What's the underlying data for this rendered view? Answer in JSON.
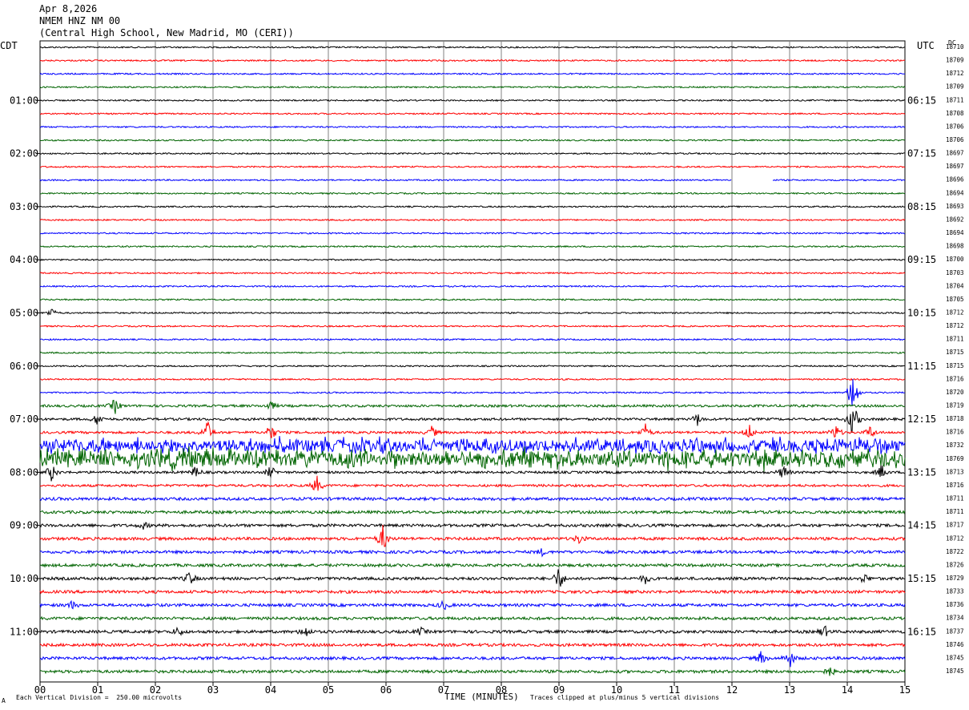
{
  "header": {
    "date": "Apr 8,2026",
    "station": "NMEM HNZ NM 00",
    "location": "(Central High School, New Madrid, MO (CERI))"
  },
  "left_tz": "CDT",
  "right_tz": "UTC",
  "dc_label": "DC",
  "footer": {
    "vertical_division": "Each Vertical Division =  250.00 microvolts",
    "clip_note": "Traces clipped at plus/minus 5 vertical divisions",
    "mark": "A"
  },
  "colors": {
    "cycle": [
      "#000000",
      "#ff0000",
      "#0000ff",
      "#006400"
    ],
    "grid": "#808080"
  },
  "chart_data": {
    "type": "line",
    "title": "NMEM HNZ NM 00",
    "xlabel": "TIME (MINUTES)",
    "ylabel": "",
    "x_ticks": [
      "00",
      "01",
      "02",
      "03",
      "04",
      "05",
      "06",
      "07",
      "08",
      "09",
      "10",
      "11",
      "12",
      "13",
      "14",
      "15"
    ],
    "xlim": [
      0,
      15
    ],
    "left_time_labels": [
      "01:00",
      "02:00",
      "03:00",
      "04:00",
      "05:00",
      "06:00",
      "07:00",
      "08:00",
      "09:00",
      "10:00",
      "11:00"
    ],
    "right_time_labels": [
      "06:15",
      "07:15",
      "08:15",
      "09:15",
      "10:15",
      "11:15",
      "12:15",
      "13:15",
      "14:15",
      "15:15",
      "16:15"
    ],
    "dc_offsets": [
      18710,
      18709,
      18712,
      18709,
      18711,
      18708,
      18706,
      18706,
      18697,
      18697,
      18696,
      18694,
      18693,
      18692,
      18694,
      18698,
      18700,
      18703,
      18704,
      18705,
      18712,
      18712,
      18711,
      18715,
      18715,
      18716,
      18720,
      18719,
      18718,
      18716,
      18732,
      18769,
      18713,
      18716,
      18711,
      18711,
      18717,
      18712,
      18722,
      18726,
      18729,
      18733,
      18736,
      18734,
      18737,
      18746,
      18745,
      18745
    ],
    "trace_activity": [
      {
        "trace": 10,
        "gap": [
          12.0,
          12.7
        ]
      },
      {
        "trace": 20,
        "events": [
          [
            0.2,
            1.5
          ]
        ]
      },
      {
        "trace": 26,
        "events": [
          [
            14.1,
            8
          ]
        ]
      },
      {
        "trace": 27,
        "events": [
          [
            1.3,
            2.5
          ],
          [
            4.0,
            1.5
          ]
        ]
      },
      {
        "trace": 28,
        "events": [
          [
            1.0,
            2
          ],
          [
            11.4,
            2
          ],
          [
            14.1,
            6
          ]
        ]
      },
      {
        "trace": 29,
        "events": [
          [
            2.9,
            4
          ],
          [
            4.0,
            3
          ],
          [
            6.8,
            2
          ],
          [
            10.5,
            2.5
          ],
          [
            12.3,
            2.5
          ],
          [
            13.8,
            2.5
          ],
          [
            14.4,
            2
          ]
        ]
      },
      {
        "trace": 30,
        "noise": 3
      },
      {
        "trace": 31,
        "noise": 4
      },
      {
        "trace": 32,
        "events": [
          [
            0.2,
            3
          ],
          [
            2.7,
            2
          ],
          [
            4.0,
            2
          ],
          [
            12.9,
            2.5
          ],
          [
            14.6,
            2.5
          ]
        ]
      },
      {
        "trace": 33,
        "events": [
          [
            4.8,
            3
          ]
        ]
      },
      {
        "trace": 36,
        "events": [
          [
            1.8,
            1
          ]
        ]
      },
      {
        "trace": 37,
        "events": [
          [
            5.95,
            4.5
          ],
          [
            9.35,
            1.5
          ]
        ]
      },
      {
        "trace": 38,
        "events": [
          [
            8.7,
            1
          ]
        ]
      },
      {
        "trace": 40,
        "events": [
          [
            2.6,
            2.5
          ],
          [
            9.0,
            4
          ],
          [
            10.5,
            1.5
          ],
          [
            14.3,
            1.5
          ]
        ]
      },
      {
        "trace": 42,
        "events": [
          [
            0.55,
            1.2
          ],
          [
            7.0,
            1.5
          ]
        ]
      },
      {
        "trace": 44,
        "events": [
          [
            2.4,
            1.5
          ],
          [
            4.6,
            2
          ],
          [
            6.6,
            1.2
          ],
          [
            13.6,
            2
          ]
        ]
      },
      {
        "trace": 46,
        "events": [
          [
            12.5,
            2
          ],
          [
            13.0,
            3
          ]
        ]
      },
      {
        "trace": 47,
        "events": [
          [
            13.7,
            1.5
          ]
        ]
      }
    ]
  }
}
